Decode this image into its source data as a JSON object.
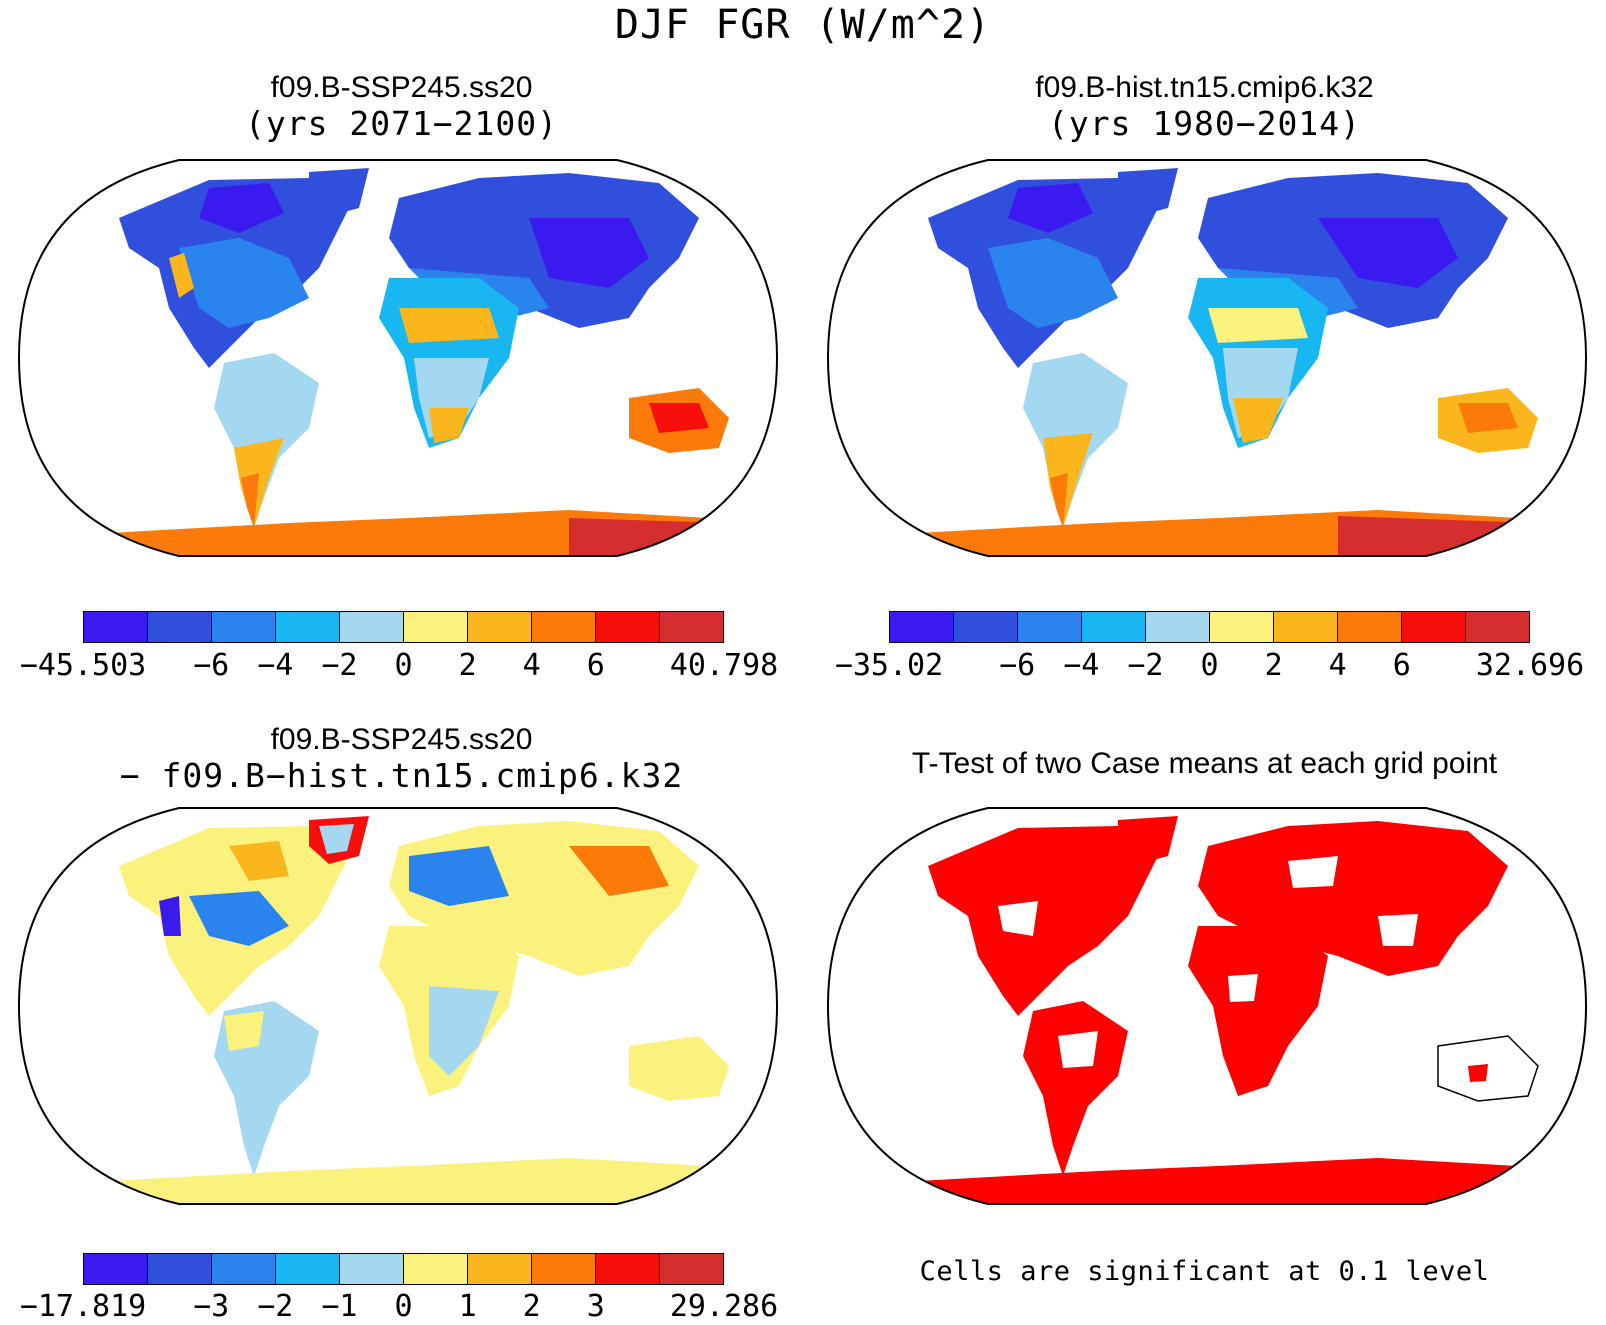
{
  "figure": {
    "title": "DJF FGR (W/m^2)"
  },
  "palette": [
    "#3b1aef",
    "#2f4fdc",
    "#2b84ee",
    "#19b7f2",
    "#a4d8f0",
    "#fbf27e",
    "#fbb61e",
    "#fb7a09",
    "#f80e0b",
    "#d62d2e"
  ],
  "panels": [
    {
      "title": "f09.B-SSP245.ss20",
      "subtitle": "(yrs 2071−2100)",
      "colorbar": {
        "labels": [
          "−45.503",
          "−6",
          "−4",
          "−2",
          "0",
          "2",
          "4",
          "6",
          "40.798"
        ]
      }
    },
    {
      "title": "f09.B-hist.tn15.cmip6.k32",
      "subtitle": "(yrs 1980−2014)",
      "colorbar": {
        "labels": [
          "−35.02",
          "−6",
          "−4",
          "−2",
          "0",
          "2",
          "4",
          "6",
          "32.696"
        ]
      }
    },
    {
      "title": "f09.B-SSP245.ss20",
      "subtitle": "− f09.B−hist.tn15.cmip6.k32",
      "colorbar": {
        "labels": [
          "−17.819",
          "−3",
          "−2",
          "−1",
          "0",
          "1",
          "2",
          "3",
          "29.286"
        ]
      }
    },
    {
      "title": "T-Test of two Case means at each grid point",
      "note": "Cells are significant at 0.1 level",
      "significant_color": "#ff0000"
    }
  ]
}
